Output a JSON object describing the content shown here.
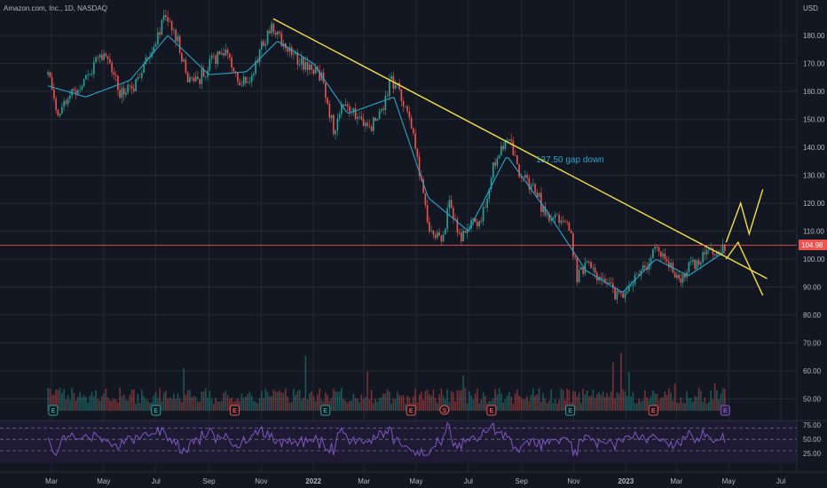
{
  "chart_data": {
    "type": "candlestick",
    "title": "Amazon.com, Inc., 1D, NASDAQ",
    "currency": "USD",
    "last_price_label": "104.98",
    "last_price": 104.98,
    "price_ticks": [
      "180.00",
      "170.00",
      "160.00",
      "150.00",
      "140.00",
      "130.00",
      "120.00",
      "110.00",
      "100.00",
      "90.00",
      "80.00",
      "70.00",
      "60.00",
      "50.00"
    ],
    "rsi_ticks": [
      "75.00",
      "50.00",
      "25.00"
    ],
    "rsi_levels": [
      70,
      50,
      30
    ],
    "time_labels": [
      "Mar",
      "May",
      "Jul",
      "Sep",
      "Nov",
      "2022",
      "Mar",
      "May",
      "Jul",
      "Sep",
      "Nov",
      "2023",
      "Mar",
      "May",
      "Jul"
    ],
    "bold_time_labels": [
      "2022",
      "2023"
    ],
    "annotation": "137.50 gap down",
    "price_path": [
      [
        "2021-02-25",
        166
      ],
      [
        "2021-03-08",
        152
      ],
      [
        "2021-03-20",
        158
      ],
      [
        "2021-04-05",
        162
      ],
      [
        "2021-04-20",
        170
      ],
      [
        "2021-05-05",
        172
      ],
      [
        "2021-05-20",
        160
      ],
      [
        "2021-06-05",
        161
      ],
      [
        "2021-06-20",
        172
      ],
      [
        "2021-07-01",
        178
      ],
      [
        "2021-07-10",
        186
      ],
      [
        "2021-07-25",
        180
      ],
      [
        "2021-08-05",
        166
      ],
      [
        "2021-08-20",
        164
      ],
      [
        "2021-09-05",
        171
      ],
      [
        "2021-09-20",
        174
      ],
      [
        "2021-10-05",
        162
      ],
      [
        "2021-10-20",
        165
      ],
      [
        "2021-11-01",
        176
      ],
      [
        "2021-11-15",
        183
      ],
      [
        "2021-11-25",
        178
      ],
      [
        "2021-12-10",
        173
      ],
      [
        "2021-12-25",
        169
      ],
      [
        "2022-01-10",
        165
      ],
      [
        "2022-01-25",
        146
      ],
      [
        "2022-02-05",
        156
      ],
      [
        "2022-02-15",
        154
      ],
      [
        "2022-03-05",
        146
      ],
      [
        "2022-03-20",
        152
      ],
      [
        "2022-04-01",
        164
      ],
      [
        "2022-04-10",
        161
      ],
      [
        "2022-04-25",
        150
      ],
      [
        "2022-05-05",
        130
      ],
      [
        "2022-05-15",
        112
      ],
      [
        "2022-05-30",
        106
      ],
      [
        "2022-06-10",
        121
      ],
      [
        "2022-06-20",
        107
      ],
      [
        "2022-07-05",
        113
      ],
      [
        "2022-07-15",
        111
      ],
      [
        "2022-07-30",
        134
      ],
      [
        "2022-08-10",
        141
      ],
      [
        "2022-08-20",
        142
      ],
      [
        "2022-09-01",
        128
      ],
      [
        "2022-09-15",
        127
      ],
      [
        "2022-09-30",
        114
      ],
      [
        "2022-10-10",
        115
      ],
      [
        "2022-10-25",
        115
      ],
      [
        "2022-11-05",
        94
      ],
      [
        "2022-11-15",
        98
      ],
      [
        "2022-11-30",
        94
      ],
      [
        "2022-12-15",
        89
      ],
      [
        "2022-12-28",
        85
      ],
      [
        "2023-01-10",
        93
      ],
      [
        "2023-01-25",
        98
      ],
      [
        "2023-02-05",
        104
      ],
      [
        "2023-02-20",
        98
      ],
      [
        "2023-03-05",
        93
      ],
      [
        "2023-03-20",
        98
      ],
      [
        "2023-04-05",
        102
      ],
      [
        "2023-04-20",
        104
      ],
      [
        "2023-04-28",
        105
      ]
    ],
    "ema_path": [
      [
        "2021-02-25",
        162
      ],
      [
        "2021-04-10",
        158
      ],
      [
        "2021-06-01",
        164
      ],
      [
        "2021-07-15",
        180
      ],
      [
        "2021-09-01",
        166
      ],
      [
        "2021-10-15",
        167
      ],
      [
        "2021-11-20",
        178
      ],
      [
        "2022-01-01",
        170
      ],
      [
        "2022-02-10",
        152
      ],
      [
        "2022-04-05",
        158
      ],
      [
        "2022-05-15",
        122
      ],
      [
        "2022-07-01",
        110
      ],
      [
        "2022-08-15",
        137
      ],
      [
        "2022-10-01",
        117
      ],
      [
        "2022-11-15",
        96
      ],
      [
        "2022-12-28",
        88
      ],
      [
        "2023-02-05",
        100
      ],
      [
        "2023-03-15",
        94
      ],
      [
        "2023-04-28",
        103
      ]
    ],
    "trendline": {
      "start": [
        "2021-11-15",
        186
      ],
      "end": [
        "2023-06-15",
        93
      ]
    },
    "projection_up": [
      [
        "2023-04-28",
        106
      ],
      [
        "2023-05-15",
        120
      ],
      [
        "2023-05-25",
        109
      ],
      [
        "2023-06-10",
        125
      ]
    ],
    "projection_down": [
      [
        "2023-04-28",
        100
      ],
      [
        "2023-05-12",
        106
      ],
      [
        "2023-06-10",
        87
      ]
    ],
    "earnings_markers": [
      {
        "date": "2021-03-03",
        "type": "E",
        "sentiment": "positive"
      },
      {
        "date": "2021-07-01",
        "type": "E",
        "sentiment": "positive"
      },
      {
        "date": "2021-10-01",
        "type": "E",
        "sentiment": "negative"
      },
      {
        "date": "2022-01-15",
        "type": "E",
        "sentiment": "positive"
      },
      {
        "date": "2022-04-25",
        "type": "E",
        "sentiment": "negative"
      },
      {
        "date": "2022-06-03",
        "type": "S",
        "sentiment": "negative"
      },
      {
        "date": "2022-07-28",
        "type": "E",
        "sentiment": "negative"
      },
      {
        "date": "2022-10-28",
        "type": "E",
        "sentiment": "positive"
      },
      {
        "date": "2023-02-02",
        "type": "E",
        "sentiment": "negative"
      },
      {
        "date": "2023-04-27",
        "type": "E",
        "sentiment": "upcoming"
      }
    ],
    "colors": {
      "background": "#131722",
      "grid": "#232834",
      "up": "#26a69a",
      "down": "#ef5350",
      "ema": "#2aa3c9",
      "trendline": "#f5e044",
      "rsi": "#7e57c2",
      "price_line": "#ef5350",
      "axis_text": "#b2b5be"
    }
  }
}
